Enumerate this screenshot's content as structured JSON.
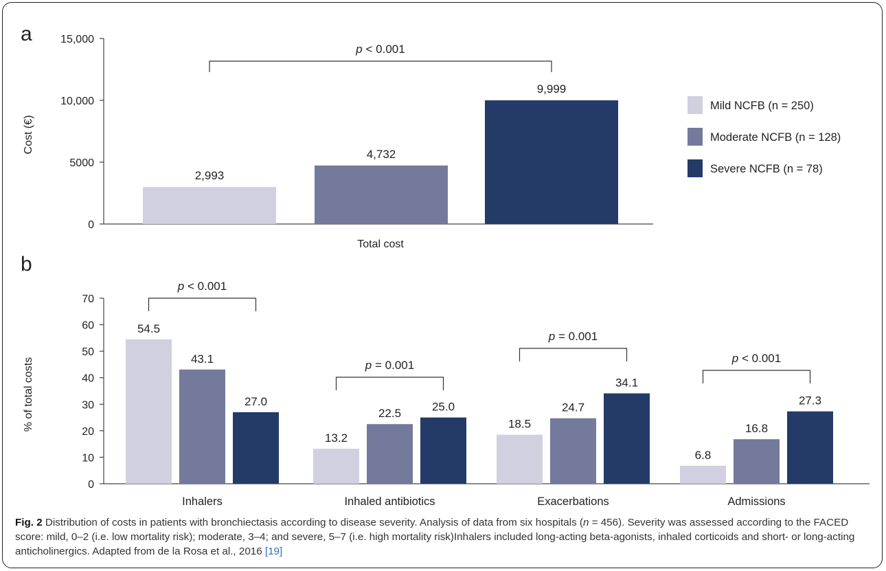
{
  "colors": {
    "mild": "#d0d0e0",
    "moderate": "#737a9b",
    "severe": "#233b66"
  },
  "legend": [
    {
      "label": "Mild NCFB (n = 250)",
      "color": "#d0d0e0"
    },
    {
      "label": "Moderate NCFB (n = 128)",
      "color": "#737a9b"
    },
    {
      "label": "Severe NCFB (n = 78)",
      "color": "#233b66"
    }
  ],
  "chart_data": [
    {
      "panel": "a",
      "type": "bar",
      "ylabel": "Cost (€)",
      "ylim": [
        0,
        15000
      ],
      "yticks": [
        0,
        5000,
        10000,
        15000
      ],
      "yticklabels": [
        "0",
        "5000",
        "10,000",
        "15,000"
      ],
      "categories": [
        "Total cost"
      ],
      "series": [
        {
          "name": "Mild NCFB (n = 250)",
          "values": [
            2993
          ],
          "labels": [
            "2,993"
          ]
        },
        {
          "name": "Moderate NCFB (n = 128)",
          "values": [
            4732
          ],
          "labels": [
            "4,732"
          ]
        },
        {
          "name": "Severe NCFB (n = 78)",
          "values": [
            9999
          ],
          "labels": [
            "9,999"
          ]
        }
      ],
      "annotations": [
        {
          "text": "p < 0.001",
          "from_series": 0,
          "to_series": 2,
          "category": 0
        }
      ],
      "legend_position": "right"
    },
    {
      "panel": "b",
      "type": "bar",
      "ylabel": "% of total costs",
      "ylim": [
        0,
        70
      ],
      "yticks": [
        0,
        10,
        20,
        30,
        40,
        50,
        60,
        70
      ],
      "categories": [
        "Inhalers",
        "Inhaled antibiotics",
        "Exacerbations",
        "Admissions"
      ],
      "series": [
        {
          "name": "Mild NCFB (n = 250)",
          "values": [
            54.5,
            13.2,
            18.5,
            6.8
          ],
          "labels": [
            "54.5",
            "13.2",
            "18.5",
            "6.8"
          ]
        },
        {
          "name": "Moderate NCFB (n = 128)",
          "values": [
            43.1,
            22.5,
            24.7,
            16.8
          ],
          "labels": [
            "43.1",
            "22.5",
            "24.7",
            "16.8"
          ]
        },
        {
          "name": "Severe NCFB (n = 78)",
          "values": [
            27.0,
            25.0,
            34.1,
            27.3
          ],
          "labels": [
            "27.0",
            "25.0",
            "34.1",
            "27.3"
          ]
        }
      ],
      "annotations": [
        {
          "text": "p < 0.001",
          "category": 0
        },
        {
          "text": "p = 0.001",
          "category": 1
        },
        {
          "text": "p = 0.001",
          "category": 2
        },
        {
          "text": "p < 0.001",
          "category": 3
        }
      ]
    }
  ],
  "caption": {
    "fig_label": "Fig. 2",
    "text_1": " Distribution of costs in patients with bronchiectasis according to disease severity. Analysis of data from six hospitals (",
    "n_italic": "n",
    "text_2": " = 456). Severity was assessed according to the FACED score: mild, 0–2 (i.e. low mortality risk); moderate, 3–4; and severe, 5–7 (i.e. high mortality risk)Inhalers included long-acting beta-agonists, inhaled corticoids and short- or long-acting anticholinergics. Adapted from de la Rosa et al., 2016 ",
    "ref": "[19]"
  }
}
